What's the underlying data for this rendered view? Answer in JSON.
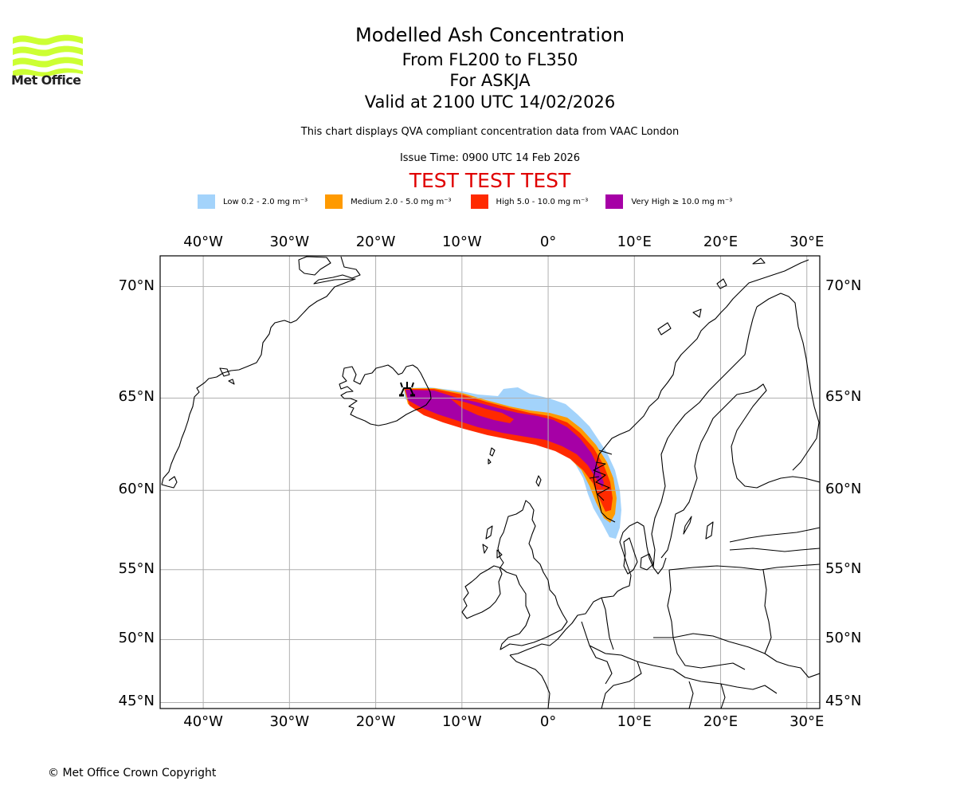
{
  "logo": {
    "text": "Met Office",
    "icon": "met-office-waves-logo",
    "color": "#ccff33"
  },
  "header": {
    "title": "Modelled Ash Concentration",
    "flight_levels": "From FL200 to FL350",
    "volcano": "For ASKJA",
    "valid_time": "Valid at 2100 UTC 14/02/2026",
    "subtitle": "This chart displays QVA compliant concentration data from VAAC London",
    "issue_time": "Issue Time: 0900 UTC 14 Feb 2026",
    "test_banner": "TEST TEST TEST",
    "test_color": "#e00000"
  },
  "legend": [
    {
      "label": "Low 0.2 - 2.0 mg m⁻³",
      "color": "#a3d3fb"
    },
    {
      "label": "Medium 2.0 - 5.0 mg m⁻³",
      "color": "#ff9a00"
    },
    {
      "label": "High 5.0 - 10.0 mg m⁻³",
      "color": "#ff2a00"
    },
    {
      "label": "Very High ≥ 10.0 mg m⁻³",
      "color": "#a600a6"
    }
  ],
  "chart_data": {
    "type": "map",
    "title": "Modelled Ash Concentration",
    "projection": "mercator",
    "lon_range": [
      -45,
      31.5
    ],
    "lat_range": [
      44.5,
      71.2
    ],
    "grid": true,
    "legend_placement": "top",
    "lon_ticks": [
      {
        "value": -40,
        "label": "40°W"
      },
      {
        "value": -30,
        "label": "30°W"
      },
      {
        "value": -20,
        "label": "20°W"
      },
      {
        "value": -10,
        "label": "10°W"
      },
      {
        "value": 0,
        "label": "0°"
      },
      {
        "value": 10,
        "label": "10°E"
      },
      {
        "value": 20,
        "label": "20°E"
      },
      {
        "value": 30,
        "label": "30°E"
      }
    ],
    "lat_ticks": [
      {
        "value": 70,
        "label": "70°N"
      },
      {
        "value": 65,
        "label": "65°N"
      },
      {
        "value": 60,
        "label": "60°N"
      },
      {
        "value": 55,
        "label": "55°N"
      },
      {
        "value": 50,
        "label": "50°N"
      },
      {
        "value": 45,
        "label": "45°N"
      }
    ],
    "volcano": {
      "name": "ASKJA",
      "lon": -16.7,
      "lat": 65.0,
      "symbol": "volcano-icon"
    },
    "ash_plume": {
      "levels": [
        "Low",
        "Medium",
        "High",
        "Very High"
      ],
      "axis_points": [
        {
          "lon": -16.5,
          "lat": 65.0
        },
        {
          "lon": -10,
          "lat": 64.7
        },
        {
          "lon": -3,
          "lat": 63.9
        },
        {
          "lon": 2,
          "lat": 63.3
        },
        {
          "lon": 5,
          "lat": 62.0
        },
        {
          "lon": 6.5,
          "lat": 60.5
        },
        {
          "lon": 7.0,
          "lat": 58.5
        }
      ]
    }
  },
  "footer": {
    "copyright": "© Met Office Crown Copyright"
  }
}
